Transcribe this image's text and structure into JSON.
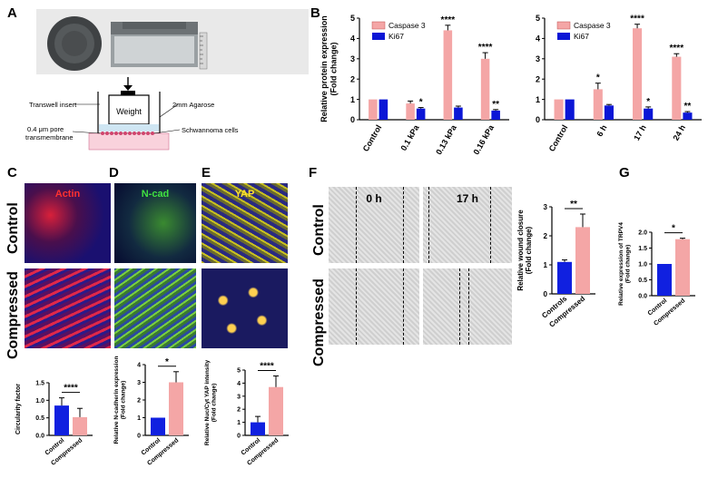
{
  "panels": {
    "a": "A",
    "b": "B",
    "c": "C",
    "d": "D",
    "e": "E",
    "f": "F",
    "g": "G"
  },
  "schematic": {
    "weight_label": "Weight",
    "transwell_label": "Transwell insert",
    "agarose_label": "2mm Agarose",
    "membrane_label_1": "0.4 μm pore",
    "membrane_label_2": "transmembrane",
    "cells_label": "Schwannoma cells"
  },
  "micro": {
    "actin": "Actin",
    "ncad": "N-cad",
    "yap": "YAP",
    "row_control": "Control",
    "row_compressed": "Compressed",
    "t0": "0 h",
    "t17": "17 h"
  },
  "colors": {
    "caspase": "#f4a6a6",
    "ki67": "#0b16d6",
    "control_bar": "#1020e0",
    "compressed_bar": "#f4a6a6"
  },
  "chart_data": [
    {
      "id": "b1",
      "type": "bar",
      "ylabel": "Relative protein expression\n(Fold change)",
      "ylim": [
        0,
        5
      ],
      "yticks": [
        0,
        1,
        2,
        3,
        4,
        5
      ],
      "categories": [
        "Control",
        "0.1 kPa",
        "0.13 kPa",
        "0.16 kPa"
      ],
      "legend": [
        "Caspase 3",
        "Ki67"
      ],
      "series": [
        {
          "name": "Caspase 3",
          "values": [
            1.0,
            0.8,
            4.4,
            3.0
          ],
          "err": [
            0,
            0.12,
            0.25,
            0.3
          ]
        },
        {
          "name": "Ki67",
          "values": [
            1.0,
            0.55,
            0.6,
            0.45
          ],
          "err": [
            0,
            0.05,
            0.07,
            0.05
          ]
        }
      ],
      "annotations": [
        {
          "category": "0.1 kPa",
          "series": "Ki67",
          "text": "*"
        },
        {
          "category": "0.13 kPa",
          "series": "Caspase 3",
          "text": "****"
        },
        {
          "category": "0.16 kPa",
          "series": "Caspase 3",
          "text": "****"
        },
        {
          "category": "0.16 kPa",
          "series": "Ki67",
          "text": "**"
        }
      ]
    },
    {
      "id": "b2",
      "type": "bar",
      "ylabel": "",
      "ylim": [
        0,
        5
      ],
      "yticks": [
        0,
        1,
        2,
        3,
        4,
        5
      ],
      "categories": [
        "Control",
        "6 h",
        "17 h",
        "24 h"
      ],
      "legend": [
        "Caspase 3",
        "Ki67"
      ],
      "series": [
        {
          "name": "Caspase 3",
          "values": [
            1.0,
            1.5,
            4.5,
            3.1
          ],
          "err": [
            0,
            0.3,
            0.2,
            0.15
          ]
        },
        {
          "name": "Ki67",
          "values": [
            1.0,
            0.7,
            0.55,
            0.35
          ],
          "err": [
            0,
            0.05,
            0.08,
            0.05
          ]
        }
      ],
      "annotations": [
        {
          "category": "6 h",
          "series": "Caspase 3",
          "text": "*"
        },
        {
          "category": "17 h",
          "series": "Caspase 3",
          "text": "****"
        },
        {
          "category": "17 h",
          "series": "Ki67",
          "text": "*"
        },
        {
          "category": "24 h",
          "series": "Caspase 3",
          "text": "****"
        },
        {
          "category": "24 h",
          "series": "Ki67",
          "text": "**"
        }
      ]
    },
    {
      "id": "c",
      "type": "bar",
      "ylabel": "Circularity factor",
      "ylim": [
        0,
        1.5
      ],
      "yticks": [
        0.0,
        0.5,
        1.0,
        1.5
      ],
      "tick_labels": [
        "0.0",
        "0.5",
        "1.0",
        "1.5"
      ],
      "categories": [
        "Control",
        "Compressed"
      ],
      "values": [
        0.85,
        0.52
      ],
      "err": [
        0.22,
        0.25
      ],
      "sig": "****"
    },
    {
      "id": "d",
      "type": "bar",
      "ylabel": "Relative N-cadherin expression\n(Fold change)",
      "ylim": [
        0,
        4
      ],
      "yticks": [
        0,
        1,
        2,
        3,
        4
      ],
      "categories": [
        "Control",
        "Compressed"
      ],
      "values": [
        1.0,
        3.0
      ],
      "err": [
        0,
        0.6
      ],
      "sig": "*"
    },
    {
      "id": "e",
      "type": "bar",
      "ylabel": "Relative Nuc/Cyt YAP intensity\n(Fold change)",
      "ylim": [
        0,
        5
      ],
      "yticks": [
        0,
        1,
        2,
        3,
        4,
        5
      ],
      "categories": [
        "Control",
        "Compressed"
      ],
      "values": [
        1.0,
        3.7
      ],
      "err": [
        0.45,
        0.85
      ],
      "sig": "****"
    },
    {
      "id": "f",
      "type": "bar",
      "ylabel": "Relative wound closure\n(Fold change)",
      "ylim": [
        0,
        3
      ],
      "yticks": [
        0,
        1,
        2,
        3
      ],
      "categories": [
        "Controls",
        "Compressed"
      ],
      "values": [
        1.1,
        2.3
      ],
      "err": [
        0.07,
        0.45
      ],
      "sig": "**"
    },
    {
      "id": "g",
      "type": "bar",
      "ylabel": "Relative expression of TRPV4\n(Fold change)",
      "ylim": [
        0,
        2.0
      ],
      "yticks": [
        0.0,
        0.5,
        1.0,
        1.5,
        2.0
      ],
      "tick_labels": [
        "0.0",
        "0.5",
        "1.0",
        "1.5",
        "2.0"
      ],
      "categories": [
        "Control",
        "Compressed"
      ],
      "values": [
        1.0,
        1.78
      ],
      "err": [
        0,
        0.03
      ],
      "sig": "*"
    }
  ]
}
